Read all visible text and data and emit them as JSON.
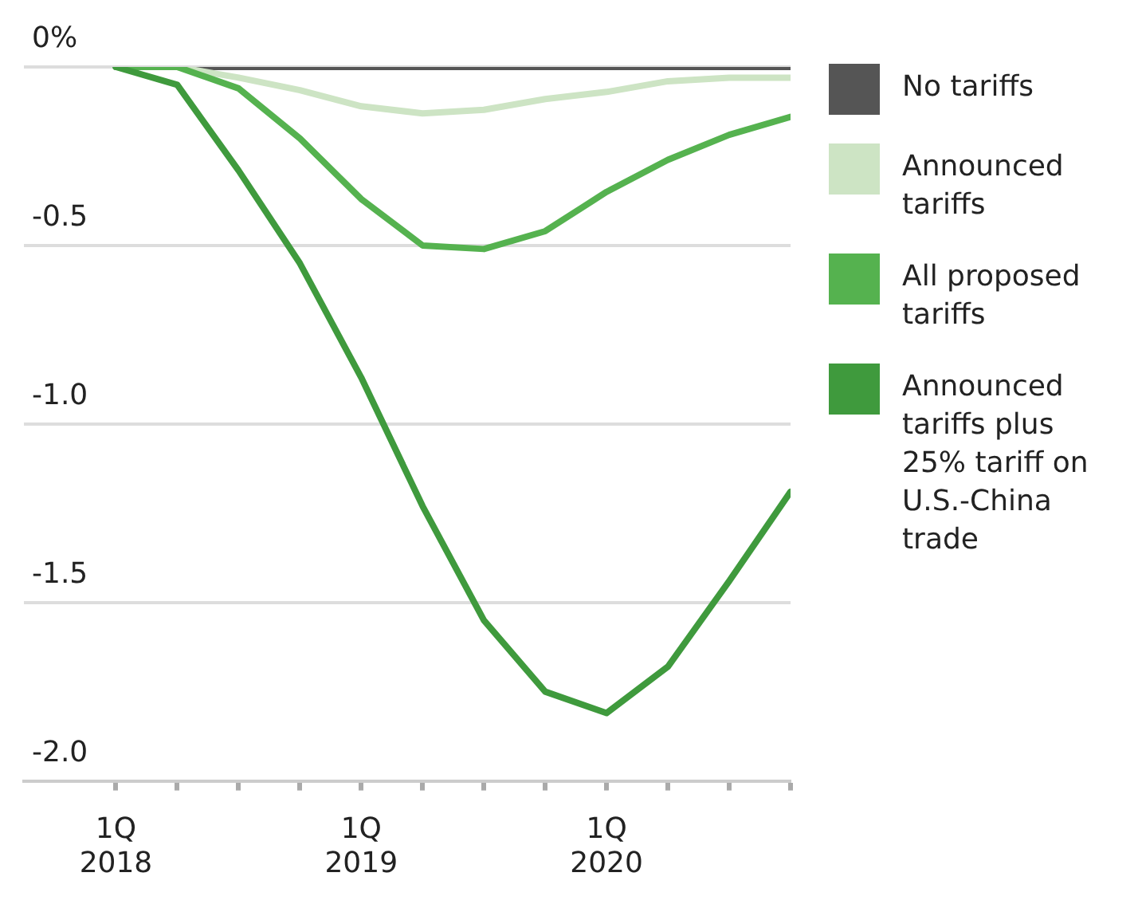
{
  "chart_data": {
    "type": "line",
    "categories": [
      "1Q 2018",
      null,
      null,
      null,
      "1Q 2019",
      null,
      null,
      null,
      "1Q 2020",
      null,
      null,
      null
    ],
    "series": [
      {
        "name": "No tariffs",
        "color": "#555555",
        "values": [
          0,
          0,
          0,
          0,
          0,
          0,
          0,
          0,
          0,
          0,
          0,
          0
        ]
      },
      {
        "name": "Announced tariffs",
        "color": "#cde4c4",
        "values": [
          0,
          0,
          -0.03,
          -0.065,
          -0.11,
          -0.13,
          -0.12,
          -0.09,
          -0.07,
          -0.04,
          -0.03,
          -0.03
        ]
      },
      {
        "name": "All proposed tariffs",
        "color": "#55b24f",
        "values": [
          0,
          0,
          -0.06,
          -0.2,
          -0.37,
          -0.5,
          -0.51,
          -0.46,
          -0.35,
          -0.26,
          -0.19,
          -0.14
        ]
      },
      {
        "name": "Announced tariffs plus 25% tariff on U.S.-China trade",
        "color": "#3f9a3d",
        "values": [
          0,
          -0.05,
          -0.29,
          -0.55,
          -0.87,
          -1.23,
          -1.55,
          -1.75,
          -1.81,
          -1.68,
          -1.44,
          -1.19
        ]
      }
    ],
    "ylim": [
      -2,
      0
    ],
    "yticks": [
      {
        "value": 0,
        "label": "0%"
      },
      -0.5,
      {
        "value": -1,
        "label": "-1.0"
      },
      -1.5,
      {
        "value": -2,
        "label": "-2.0"
      }
    ],
    "grid": "y",
    "legend": "right",
    "marker": "none",
    "line_style": "solid"
  }
}
